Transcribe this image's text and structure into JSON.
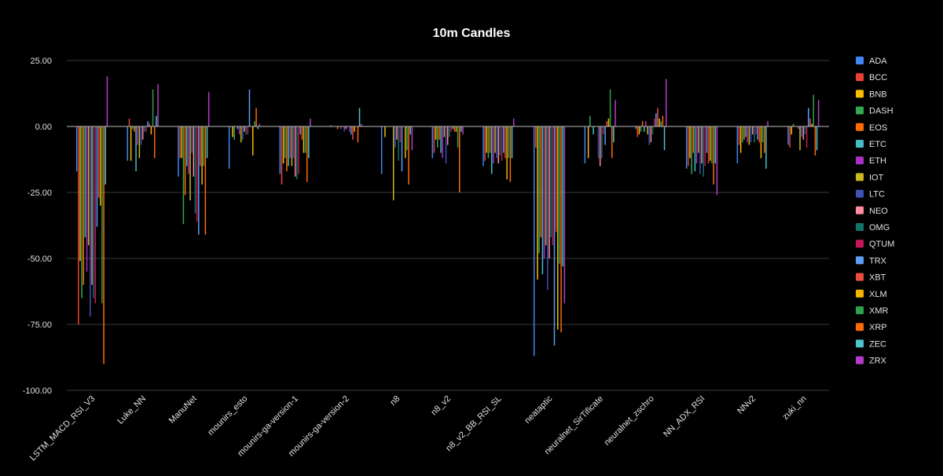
{
  "chart_data": {
    "type": "bar",
    "title": "10m Candles",
    "ylim": [
      -100,
      25
    ],
    "yticks": [
      25,
      0,
      -25,
      -50,
      -75,
      -100
    ],
    "ytick_labels": [
      "25.00",
      "0.00",
      "-25.00",
      "-50.00",
      "-75.00",
      "-100.00"
    ],
    "grid": true,
    "legend_position": "right",
    "categories": [
      "LSTM_MACD_RSI_V3",
      "Luke_NN",
      "ManuNet",
      "mounirs_esto",
      "mounirs-ga-version-1",
      "mounirs-ga-version-2",
      "n8",
      "n8_v2",
      "n8_v2_BB_RSI_SL",
      "neataptic",
      "neuralnet_SirTificate",
      "neuralnet_zschro",
      "NN_ADX_RSI",
      "NNv2",
      "zuki_nn"
    ],
    "series": [
      {
        "name": "ADA",
        "color": "#4285F4",
        "values": [
          -17,
          -13,
          -19,
          -16,
          -18,
          0.5,
          -18,
          -12,
          -15,
          -87,
          -14,
          -1,
          -16,
          -14,
          -7
        ]
      },
      {
        "name": "BCC",
        "color": "#EA4335",
        "values": [
          -75,
          3,
          -12,
          0,
          -22,
          0,
          0,
          -10,
          -13,
          -8,
          0,
          -4,
          -15,
          -7,
          -8
        ]
      },
      {
        "name": "BNB",
        "color": "#FBBC04",
        "values": [
          -51,
          -13,
          -12,
          -4,
          -14,
          0,
          -4,
          -5,
          -10,
          -58,
          -12,
          -3,
          -12,
          -10,
          -3
        ]
      },
      {
        "name": "DASH",
        "color": "#34A853",
        "values": [
          -65,
          -1,
          -37,
          -5,
          -12,
          0,
          0,
          -8,
          -12,
          -48,
          4,
          -2,
          -18,
          -6,
          1
        ]
      },
      {
        "name": "EOS",
        "color": "#FF6D01",
        "values": [
          -60,
          -2,
          -26,
          0,
          -17,
          -1,
          0,
          -5,
          -10,
          -42,
          0,
          2,
          -10,
          -5,
          0
        ]
      },
      {
        "name": "ETC",
        "color": "#46BDC6",
        "values": [
          -42,
          -17,
          -15,
          -1,
          -15,
          0,
          0,
          -10,
          -18,
          -56,
          -3,
          -2,
          -17,
          -4,
          0
        ]
      },
      {
        "name": "ETH",
        "color": "#AB30C4",
        "values": [
          -55,
          -7,
          -18,
          -3,
          -12,
          -1,
          0,
          -12,
          -14,
          -50,
          0,
          2,
          -14,
          -6,
          -1
        ]
      },
      {
        "name": "IOT",
        "color": "#C9B820",
        "values": [
          -45,
          -12,
          -28,
          -6,
          -15,
          0,
          -28,
          -4,
          -10,
          -45,
          0,
          -3,
          -10,
          -7,
          -9
        ]
      },
      {
        "name": "LTC",
        "color": "#3F51B5",
        "values": [
          -72,
          -7,
          -10,
          -5,
          -12,
          -2,
          -8,
          -14,
          -12,
          -62,
          -12,
          -7,
          -18,
          -6,
          -4
        ]
      },
      {
        "name": "NEO",
        "color": "#FF8BA0",
        "values": [
          -60,
          -5,
          -19,
          -2,
          -19,
          -1,
          -5,
          -7,
          -14,
          -50,
          -15,
          -6,
          -14,
          -3,
          -5
        ]
      },
      {
        "name": "OMG",
        "color": "#12736B",
        "values": [
          -65,
          -2,
          -33,
          -3,
          -20,
          0,
          -13,
          -4,
          -11,
          -42,
          -12,
          -3,
          -19,
          -6,
          -3
        ]
      },
      {
        "name": "QTUM",
        "color": "#C2185B",
        "values": [
          -67,
          -2,
          -36,
          -3,
          -18,
          -2,
          -6,
          -2,
          -13,
          -45,
          -3,
          3,
          -15,
          -3,
          -8
        ]
      },
      {
        "name": "TRX",
        "color": "#5C9DF5",
        "values": [
          -38,
          2,
          -41,
          14,
          -3,
          -3,
          -17,
          -1,
          -10,
          -83,
          -7,
          5,
          -10,
          -5,
          7
        ]
      },
      {
        "name": "XBT",
        "color": "#E94E3D",
        "values": [
          -27,
          1,
          -15,
          0,
          -5,
          -5,
          0,
          -2,
          -12,
          -40,
          2,
          7,
          -14,
          -6,
          3
        ]
      },
      {
        "name": "XLM",
        "color": "#F5B400",
        "values": [
          -30,
          -3,
          -22,
          -11,
          -10,
          -2,
          -12,
          -2,
          -20,
          -77,
          3,
          3,
          -13,
          -12,
          1
        ]
      },
      {
        "name": "XMR",
        "color": "#2EA04C",
        "values": [
          -67,
          14,
          -15,
          2,
          -10,
          0,
          -9,
          -8,
          -12,
          -52,
          14,
          2,
          -14,
          -6,
          12
        ]
      },
      {
        "name": "XRP",
        "color": "#FB6B0A",
        "values": [
          -90,
          -12,
          -41,
          7,
          -21,
          -6,
          -22,
          -25,
          -21,
          -78,
          -12,
          4,
          -22,
          -10,
          -11
        ]
      },
      {
        "name": "ZEC",
        "color": "#4DC3CC",
        "values": [
          -22,
          4,
          -12,
          -1,
          -12,
          7,
          -3,
          -2,
          -12,
          -53,
          -6,
          -9,
          -14,
          -16,
          -9
        ]
      },
      {
        "name": "ZRX",
        "color": "#B03DC9",
        "values": [
          19,
          16,
          13,
          1,
          3,
          1,
          -9,
          -3,
          3,
          -67,
          10,
          18,
          -26,
          2,
          10
        ]
      }
    ]
  }
}
